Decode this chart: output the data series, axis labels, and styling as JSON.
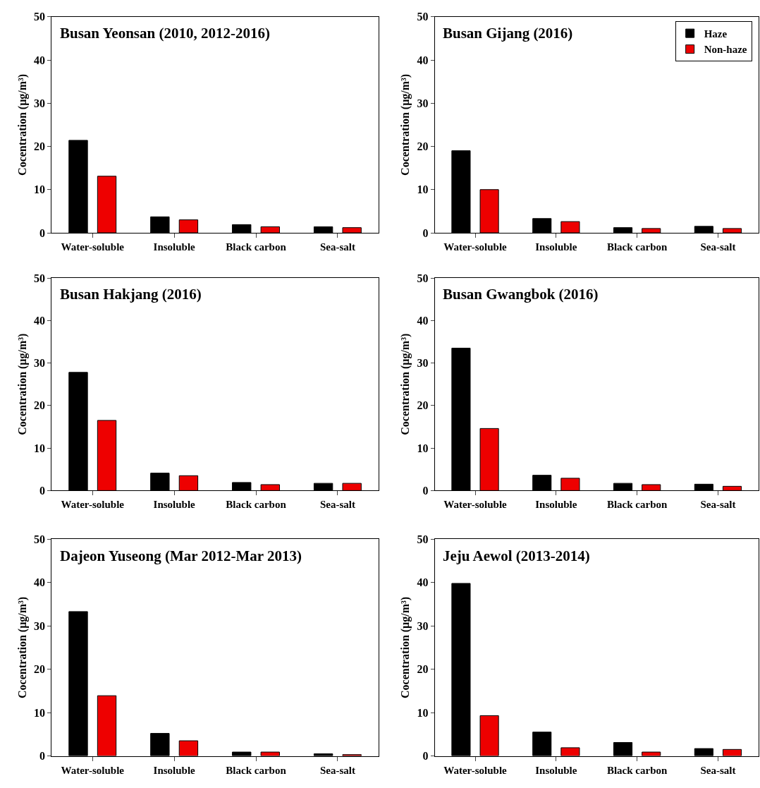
{
  "chart_data": [
    {
      "type": "bar",
      "title": "Busan Yeonsan (2010, 2012-2016)",
      "ylabel": "Cocentration (μg/m³)",
      "categories": [
        "Water-soluble",
        "Insoluble",
        "Black carbon",
        "Sea-salt"
      ],
      "ylim": [
        0,
        50
      ],
      "yticks": [
        0,
        10,
        20,
        30,
        40,
        50
      ],
      "series": [
        {
          "color": "#000000",
          "values": [
            21.4,
            3.7,
            1.9,
            1.4
          ]
        },
        {
          "color": "#ee0000",
          "values": [
            13.1,
            3.0,
            1.4,
            1.2
          ]
        }
      ]
    },
    {
      "type": "bar",
      "title": "Busan Gijang (2016)",
      "ylabel": "Cocentration (μg/m³)",
      "categories": [
        "Water-soluble",
        "Insoluble",
        "Black carbon",
        "Sea-salt"
      ],
      "ylim": [
        0,
        50
      ],
      "yticks": [
        0,
        10,
        20,
        30,
        40,
        50
      ],
      "legend": "top right",
      "series": [
        {
          "name": "Haze",
          "color": "#000000",
          "values": [
            19.0,
            3.3,
            1.2,
            1.5
          ]
        },
        {
          "name": "Non-haze",
          "color": "#ee0000",
          "values": [
            10.0,
            2.6,
            1.0,
            1.0
          ]
        }
      ]
    },
    {
      "type": "bar",
      "title": "Busan Hakjang (2016)",
      "ylabel": "Cocentration (μg/m³)",
      "categories": [
        "Water-soluble",
        "Insoluble",
        "Black carbon",
        "Sea-salt"
      ],
      "ylim": [
        0,
        50
      ],
      "yticks": [
        0,
        10,
        20,
        30,
        40,
        50
      ],
      "series": [
        {
          "color": "#000000",
          "values": [
            27.8,
            4.1,
            1.9,
            1.7
          ]
        },
        {
          "color": "#ee0000",
          "values": [
            16.5,
            3.5,
            1.4,
            1.7
          ]
        }
      ]
    },
    {
      "type": "bar",
      "title": "Busan Gwangbok (2016)",
      "ylabel": "Cocentration (μg/m³)",
      "categories": [
        "Water-soluble",
        "Insoluble",
        "Black carbon",
        "Sea-salt"
      ],
      "ylim": [
        0,
        50
      ],
      "yticks": [
        0,
        10,
        20,
        30,
        40,
        50
      ],
      "series": [
        {
          "color": "#000000",
          "values": [
            33.5,
            3.6,
            1.7,
            1.5
          ]
        },
        {
          "color": "#ee0000",
          "values": [
            14.6,
            2.9,
            1.4,
            1.0
          ]
        }
      ]
    },
    {
      "type": "bar",
      "title": "Dajeon Yuseong (Mar 2012-Mar 2013)",
      "ylabel": "Cocentration (μg/m³)",
      "categories": [
        "Water-soluble",
        "Insoluble",
        "Black carbon",
        "Sea-salt"
      ],
      "ylim": [
        0,
        50
      ],
      "yticks": [
        0,
        10,
        20,
        30,
        40,
        50
      ],
      "series": [
        {
          "color": "#000000",
          "values": [
            33.3,
            5.2,
            0.9,
            0.5
          ]
        },
        {
          "color": "#ee0000",
          "values": [
            13.9,
            3.5,
            0.9,
            0.3
          ]
        }
      ]
    },
    {
      "type": "bar",
      "title": "Jeju Aewol (2013-2014)",
      "ylabel": "Cocentration (μg/m³)",
      "categories": [
        "Water-soluble",
        "Insoluble",
        "Black carbon",
        "Sea-salt"
      ],
      "ylim": [
        0,
        50
      ],
      "yticks": [
        0,
        10,
        20,
        30,
        40,
        50
      ],
      "series": [
        {
          "color": "#000000",
          "values": [
            39.8,
            5.5,
            3.1,
            1.7
          ]
        },
        {
          "color": "#ee0000",
          "values": [
            9.3,
            1.9,
            0.9,
            1.5
          ]
        }
      ]
    }
  ]
}
